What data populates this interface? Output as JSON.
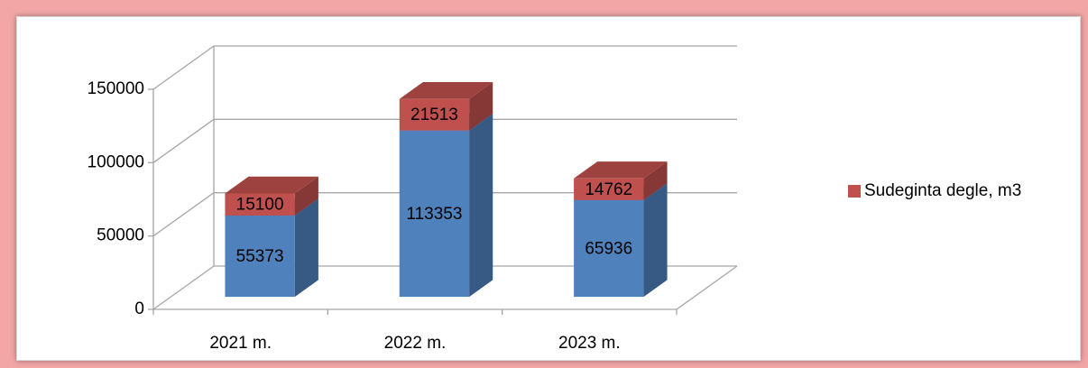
{
  "chart_data": {
    "type": "bar3d_stacked",
    "categories": [
      "2021 m.",
      "2022 m.",
      "2023 m."
    ],
    "series": [
      {
        "color": "#4f81bd",
        "values": [
          55373,
          113353,
          65936
        ]
      },
      {
        "name": "Sudeginta degle, m3",
        "color": "#c0504d",
        "values": [
          15100,
          21513,
          14762
        ]
      }
    ],
    "ylim": [
      0,
      150000
    ],
    "yticks": [
      0,
      50000,
      100000,
      150000
    ],
    "grid": true,
    "legend": "right"
  }
}
